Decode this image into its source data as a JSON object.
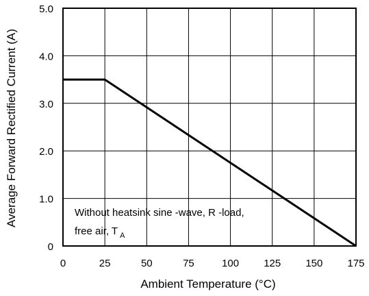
{
  "chart_data": {
    "type": "line",
    "title": "",
    "xlabel": "Ambient Temperature (°C)",
    "ylabel": "Average Forward Rectified Current (A)",
    "xlim": [
      0,
      175
    ],
    "ylim": [
      0,
      5.0
    ],
    "x_ticks": [
      "0",
      "25",
      "50",
      "75",
      "100",
      "125",
      "150",
      "175"
    ],
    "y_ticks": [
      "0",
      "1.0",
      "2.0",
      "3.0",
      "4.0",
      "5.0"
    ],
    "grid": true,
    "legend": "none",
    "series": [
      {
        "x": [
          0,
          25,
          175
        ],
        "y": [
          3.5,
          3.5,
          0
        ]
      }
    ],
    "annotation": {
      "line1": "Without heatsink sine -wave, R -load,",
      "line2": "free air, T",
      "line2_sub": "A"
    }
  }
}
